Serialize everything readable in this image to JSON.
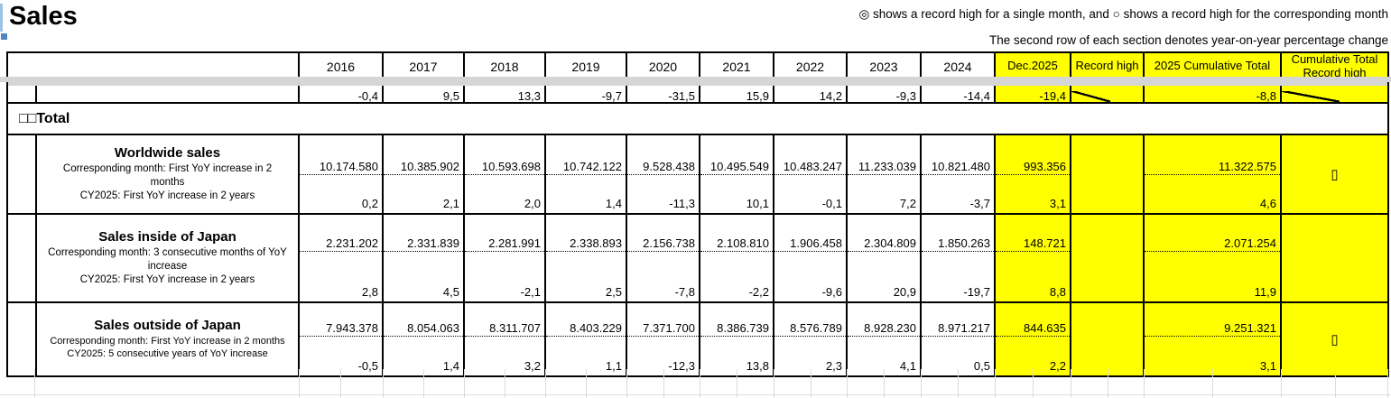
{
  "title": "Sales",
  "legend": {
    "line1": "◎ shows a record high for a single month, and ○ shows a record high for the corresponding month",
    "line2": "The second row of each section denotes year-on-year percentage change"
  },
  "columns": {
    "years": [
      "2016",
      "2017",
      "2018",
      "2019",
      "2020",
      "2021",
      "2022",
      "2023",
      "2024"
    ],
    "highlight": [
      "Dec.2025",
      "Record high",
      "2025 Cumulative Total",
      "Cumulative Total Record high"
    ]
  },
  "clipped_row": {
    "yoy": [
      "-0,4",
      "9,5",
      "13,3",
      "-9,7",
      "-31,5",
      "15,9",
      "14,2",
      "-9,3",
      "-14,4"
    ],
    "dec_yoy": "-19,4",
    "cum_yoy": "-8,8"
  },
  "section": {
    "title": "□□Total"
  },
  "rows": [
    {
      "label": "Worldwide sales",
      "note1": "Corresponding month: First YoY increase in 2 months",
      "note2": "CY2025: First YoY increase in 2 years",
      "values": [
        "10.174.580",
        "10.385.902",
        "10.593.698",
        "10.742.122",
        "9.528.438",
        "10.495.549",
        "10.483.247",
        "11.233.039",
        "10.821.480"
      ],
      "yoy": [
        "0,2",
        "2,1",
        "2,0",
        "1,4",
        "-11,3",
        "10,1",
        "-0,1",
        "7,2",
        "-3,7"
      ],
      "dec_value": "993.356",
      "dec_yoy": "3,1",
      "cum_value": "11.322.575",
      "cum_yoy": "4,6",
      "cum_record": "▯"
    },
    {
      "label": "Sales inside of Japan",
      "note1": "Corresponding month: 3 consecutive months of YoY increase",
      "note2": "CY2025:  First YoY increase in 2 years",
      "values": [
        "2.231.202",
        "2.331.839",
        "2.281.991",
        "2.338.893",
        "2.156.738",
        "2.108.810",
        "1.906.458",
        "2.304.809",
        "1.850.263"
      ],
      "yoy": [
        "2,8",
        "4,5",
        "-2,1",
        "2,5",
        "-7,8",
        "-2,2",
        "-9,6",
        "20,9",
        "-19,7"
      ],
      "dec_value": "148.721",
      "dec_yoy": "8,8",
      "cum_value": "2.071.254",
      "cum_yoy": "11,9",
      "cum_record": ""
    },
    {
      "label": "Sales outside of Japan",
      "note1": "Corresponding month: First YoY increase in 2 months",
      "note2": "CY2025: 5 consecutive years of YoY increase",
      "values": [
        "7.943.378",
        "8.054.063",
        "8.311.707",
        "8.403.229",
        "7.371.700",
        "8.386.739",
        "8.576.789",
        "8.928.230",
        "8.971.217"
      ],
      "yoy": [
        "-0,5",
        "1,4",
        "3,2",
        "1,1",
        "-12,3",
        "13,8",
        "2,3",
        "4,1",
        "0,5"
      ],
      "dec_value": "844.635",
      "dec_yoy": "2,2",
      "cum_value": "9.251.321",
      "cum_yoy": "3,1",
      "cum_record": "▯"
    }
  ],
  "colors": {
    "highlight": "#ffff00",
    "band": "#d6d6d6",
    "selection": "#4f86c6"
  }
}
